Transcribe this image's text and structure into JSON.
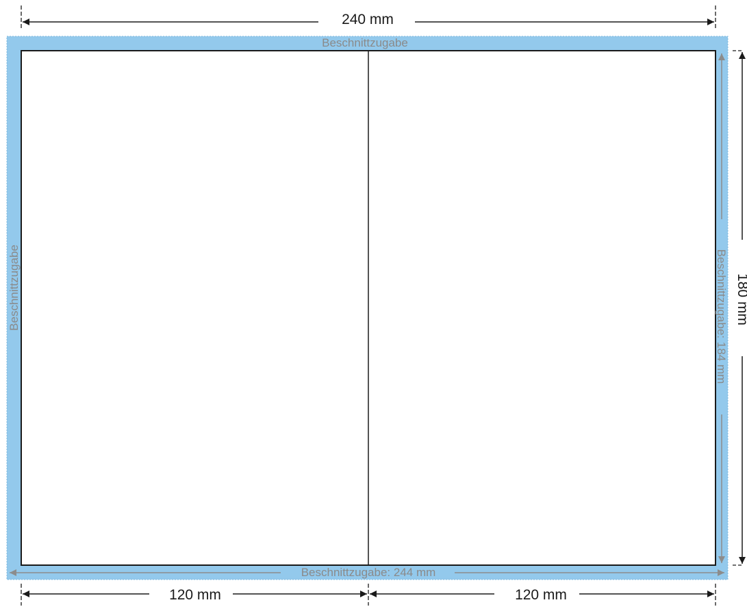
{
  "labels": {
    "top_width": "240 mm",
    "bleed_top": "Beschnittzugabe",
    "bleed_left": "Beschnittzugabe",
    "bleed_right": "Beschnittzugabe: 184 mm",
    "bleed_bottom": "Beschnittzugabe: 244 mm",
    "height": "180 mm",
    "left_panel_width": "120 mm",
    "right_panel_width": "120 mm"
  },
  "colors": {
    "bleed_fill": "#93c9ec",
    "bleed_border": "#7fb8dc",
    "trim_stroke": "#1a1a1a",
    "bleed_text": "#8a8a8a",
    "bleed_arrow": "#8c8c8c",
    "dimension": "#1a1a1a",
    "page": "#ffffff"
  }
}
